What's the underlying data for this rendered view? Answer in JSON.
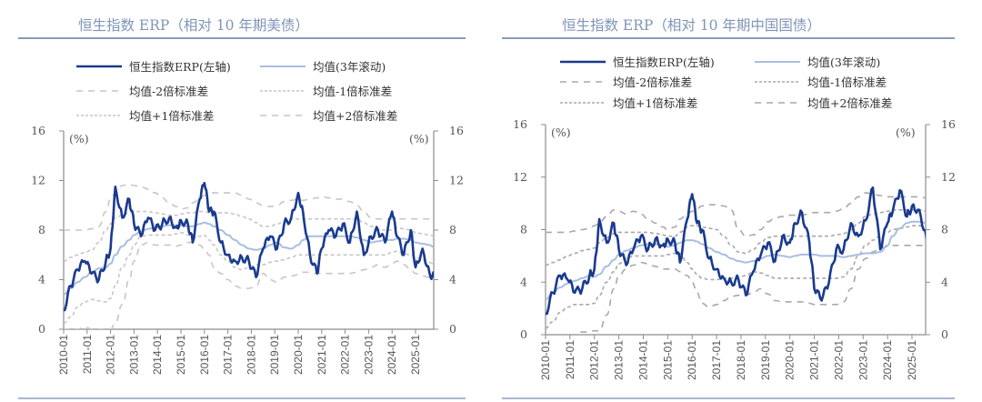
{
  "chart_data": [
    {
      "type": "line",
      "title": "恒生指数 ERP（相对 10 年期美债）",
      "unit_left": "(%)",
      "unit_right": "(%)",
      "ylim": [
        0,
        16
      ],
      "yticks": [
        "0",
        "4",
        "8",
        "12",
        "16"
      ],
      "xticks": [
        "2010-01",
        "2011-01",
        "2012-01",
        "2013-01",
        "2014-01",
        "2015-01",
        "2016-01",
        "2017-01",
        "2018-01",
        "2019-01",
        "2020-01",
        "2021-01",
        "2022-01",
        "2023-01",
        "2024-01",
        "2025-01"
      ],
      "legend": [
        "恒生指数ERP(左轴)",
        "均值(3年滚动)",
        "均值-2倍标准差",
        "均值-1倍标准差",
        "均值+1倍标准差",
        "均值+2倍标准差"
      ],
      "x": [
        2010.0,
        2010.3,
        2010.6,
        2010.9,
        2011.2,
        2011.5,
        2011.8,
        2012.0,
        2012.2,
        2012.5,
        2012.8,
        2013.0,
        2013.3,
        2013.6,
        2013.9,
        2014.2,
        2014.5,
        2014.8,
        2015.0,
        2015.3,
        2015.5,
        2015.8,
        2016.0,
        2016.2,
        2016.4,
        2016.7,
        2017.0,
        2017.3,
        2017.6,
        2017.9,
        2018.2,
        2018.5,
        2018.8,
        2019.1,
        2019.4,
        2019.7,
        2020.0,
        2020.2,
        2020.5,
        2020.8,
        2021.0,
        2021.3,
        2021.6,
        2021.9,
        2022.2,
        2022.5,
        2022.8,
        2023.1,
        2023.4,
        2023.7,
        2024.0,
        2024.2,
        2024.5,
        2024.8,
        2025.0,
        2025.3,
        2025.6,
        2025.8
      ],
      "series": [
        {
          "name": "恒生指数ERP(左轴)",
          "values": [
            1.5,
            3.5,
            4.8,
            5.5,
            4.5,
            4.0,
            5.5,
            6.5,
            11.5,
            9.0,
            10.5,
            8.5,
            7.5,
            9.0,
            8.0,
            8.5,
            9.0,
            8.2,
            8.8,
            8.5,
            7.0,
            10.5,
            11.8,
            9.5,
            9.5,
            7.0,
            6.0,
            5.5,
            5.8,
            5.5,
            4.2,
            6.5,
            7.5,
            6.5,
            8.5,
            9.0,
            11.0,
            9.5,
            6.0,
            4.5,
            6.5,
            8.0,
            7.5,
            8.5,
            7.0,
            9.5,
            6.0,
            7.5,
            8.0,
            7.0,
            9.5,
            7.5,
            6.0,
            8.0,
            5.0,
            6.5,
            4.5,
            4.2
          ]
        },
        {
          "name": "均值(3年滚动)",
          "values": [
            2.8,
            3.3,
            3.8,
            4.2,
            4.6,
            4.9,
            5.0,
            5.3,
            6.0,
            6.7,
            7.2,
            7.6,
            7.9,
            8.1,
            8.2,
            8.3,
            8.4,
            8.4,
            8.4,
            8.3,
            8.3,
            8.5,
            8.6,
            8.5,
            8.3,
            8.0,
            7.6,
            7.2,
            6.8,
            6.5,
            6.4,
            6.5,
            6.8,
            7.0,
            6.6,
            6.5,
            6.8,
            7.2,
            7.5,
            7.5,
            7.5,
            7.5,
            7.5,
            7.5,
            7.5,
            7.4,
            7.2,
            7.0,
            7.1,
            7.2,
            7.2,
            7.3,
            7.3,
            7.2,
            7.0,
            6.9,
            6.8,
            6.6
          ]
        },
        {
          "name": "均值-2倍标准差",
          "values": [
            0.0,
            0.0,
            0.0,
            0.2,
            0.0,
            0.0,
            0.0,
            0.0,
            0.5,
            2.0,
            4.0,
            5.5,
            6.8,
            7.0,
            6.8,
            6.8,
            6.8,
            6.7,
            6.8,
            7.0,
            7.0,
            6.8,
            6.5,
            6.0,
            5.0,
            4.5,
            4.0,
            3.5,
            3.3,
            3.3,
            3.5,
            4.5,
            4.0,
            3.8,
            4.2,
            4.3,
            4.4,
            4.6,
            4.6,
            4.5,
            4.5,
            4.5,
            4.5,
            4.5,
            4.5,
            4.6,
            4.8,
            5.0,
            5.2,
            5.0,
            5.3,
            5.5,
            5.2,
            4.8,
            4.5,
            4.3,
            4.2,
            4.0
          ]
        },
        {
          "name": "均值-1倍标准差",
          "values": [
            0.5,
            1.0,
            1.8,
            2.2,
            2.4,
            2.3,
            2.2,
            2.5,
            3.5,
            5.0,
            6.0,
            6.8,
            7.5,
            7.6,
            7.6,
            7.6,
            7.6,
            7.7,
            7.8,
            7.6,
            7.4,
            7.5,
            7.6,
            7.2,
            6.8,
            6.0,
            5.5,
            5.0,
            4.8,
            5.0,
            5.2,
            5.2,
            5.4,
            5.5,
            5.6,
            5.8,
            6.0,
            6.0,
            6.0,
            6.0,
            6.0,
            6.0,
            6.0,
            6.0,
            6.0,
            6.0,
            6.0,
            6.0,
            6.0,
            6.0,
            6.2,
            6.3,
            6.1,
            6.0,
            5.8,
            5.6,
            5.4,
            5.2
          ]
        },
        {
          "name": "均值+1倍标准差",
          "values": [
            5.5,
            5.8,
            6.0,
            6.2,
            6.4,
            7.0,
            8.0,
            8.5,
            9.0,
            9.2,
            9.4,
            9.5,
            9.5,
            9.5,
            9.4,
            9.3,
            9.2,
            9.2,
            9.3,
            9.4,
            9.4,
            9.5,
            9.5,
            9.4,
            9.4,
            9.4,
            9.4,
            9.3,
            9.1,
            8.9,
            8.6,
            8.3,
            8.3,
            8.5,
            8.7,
            8.9,
            8.9,
            8.9,
            8.9,
            8.9,
            8.9,
            8.9,
            8.9,
            8.9,
            8.9,
            8.9,
            8.6,
            8.3,
            8.1,
            8.0,
            8.0,
            8.2,
            8.1,
            8.0,
            7.8,
            7.7,
            7.6,
            7.5
          ]
        },
        {
          "name": "均值+2倍标准差",
          "values": [
            8.0,
            8.0,
            8.0,
            8.0,
            8.1,
            8.3,
            9.5,
            10.5,
            11.0,
            11.6,
            11.7,
            11.6,
            11.5,
            11.3,
            11.0,
            10.6,
            10.2,
            9.9,
            9.7,
            9.8,
            10.2,
            10.5,
            10.8,
            11.0,
            11.0,
            11.0,
            11.0,
            11.0,
            10.8,
            10.5,
            10.2,
            10.0,
            9.9,
            10.0,
            10.3,
            10.4,
            10.5,
            10.4,
            10.5,
            10.6,
            10.7,
            10.6,
            10.5,
            10.5,
            10.3,
            10.0,
            9.5,
            9.0,
            8.9,
            8.9,
            8.9,
            8.9,
            8.9,
            8.9,
            8.9,
            8.9,
            8.9,
            8.9
          ]
        }
      ]
    },
    {
      "type": "line",
      "title": "恒生指数 ERP（相对 10 年期中国国债）",
      "unit_left": "(%)",
      "unit_right": "(%)",
      "ylim": [
        0,
        16
      ],
      "yticks": [
        "0",
        "4",
        "8",
        "12",
        "16"
      ],
      "xticks": [
        "2010-01",
        "2011-01",
        "2012-01",
        "2013-01",
        "2014-01",
        "2015-01",
        "2016-01",
        "2017-01",
        "2018-01",
        "2019-01",
        "2020-01",
        "2021-01",
        "2022-01",
        "2023-01",
        "2024-01",
        "2025-01"
      ],
      "legend": [
        "恒生指数ERP(左轴)",
        "均值(3年滚动)",
        "均值-2倍标准差",
        "均值-1倍标准差",
        "均值+1倍标准差",
        "均值+2倍标准差"
      ],
      "x": [
        2010.0,
        2010.3,
        2010.6,
        2010.9,
        2011.2,
        2011.5,
        2011.8,
        2012.0,
        2012.2,
        2012.5,
        2012.8,
        2013.0,
        2013.3,
        2013.6,
        2013.9,
        2014.2,
        2014.5,
        2014.8,
        2015.0,
        2015.3,
        2015.5,
        2015.8,
        2016.0,
        2016.2,
        2016.4,
        2016.7,
        2017.0,
        2017.3,
        2017.6,
        2017.9,
        2018.2,
        2018.5,
        2018.8,
        2019.1,
        2019.4,
        2019.7,
        2020.0,
        2020.2,
        2020.5,
        2020.8,
        2021.0,
        2021.3,
        2021.6,
        2021.9,
        2022.2,
        2022.5,
        2022.8,
        2023.1,
        2023.4,
        2023.7,
        2024.0,
        2024.2,
        2024.5,
        2024.8,
        2025.0,
        2025.3,
        2025.6,
        2025.8
      ],
      "series": [
        {
          "name": "恒生指数ERP(左轴)",
          "values": [
            1.6,
            3.2,
            4.5,
            4.2,
            3.2,
            3.5,
            4.5,
            5.0,
            8.8,
            7.0,
            8.5,
            6.5,
            5.3,
            6.5,
            7.5,
            6.5,
            7.3,
            6.8,
            7.3,
            7.0,
            5.5,
            8.8,
            10.7,
            8.5,
            8.0,
            5.8,
            5.0,
            4.3,
            4.0,
            4.2,
            3.0,
            4.8,
            6.0,
            7.0,
            5.6,
            7.5,
            7.0,
            8.5,
            9.3,
            7.0,
            3.5,
            2.6,
            4.0,
            6.5,
            6.5,
            8.5,
            7.5,
            8.7,
            11.2,
            6.5,
            8.5,
            9.3,
            11.0,
            9.0,
            9.8,
            9.5,
            7.3,
            6.5
          ]
        },
        {
          "name": "均值(3年滚动)",
          "values": [
            2.7,
            3.2,
            3.6,
            3.9,
            4.1,
            4.3,
            4.5,
            4.4,
            4.6,
            5.2,
            5.7,
            6.1,
            6.4,
            6.6,
            6.8,
            6.9,
            6.9,
            6.8,
            6.7,
            6.8,
            7.0,
            7.2,
            7.2,
            7.1,
            6.9,
            6.6,
            6.3,
            6.1,
            5.8,
            5.6,
            5.5,
            5.6,
            5.8,
            6.0,
            6.1,
            6.0,
            5.9,
            6.0,
            6.1,
            6.1,
            6.1,
            6.0,
            6.0,
            6.0,
            5.9,
            6.0,
            6.1,
            6.2,
            6.2,
            6.3,
            6.8,
            7.5,
            8.1,
            8.5,
            8.6,
            8.6,
            8.5,
            8.3
          ]
        },
        {
          "name": "均值-2倍标准差",
          "values": [
            0.0,
            0.0,
            0.0,
            0.0,
            0.0,
            0.2,
            0.2,
            0.3,
            0.3,
            1.5,
            3.5,
            4.5,
            5.0,
            5.3,
            5.5,
            5.4,
            5.2,
            5.0,
            5.0,
            5.0,
            4.8,
            4.5,
            4.0,
            3.2,
            2.4,
            2.1,
            2.3,
            2.6,
            2.9,
            3.0,
            3.0,
            3.2,
            3.5,
            3.1,
            2.6,
            2.5,
            2.5,
            2.5,
            2.5,
            2.4,
            2.3,
            2.3,
            2.3,
            2.3,
            2.5,
            3.5,
            5.0,
            5.8,
            6.3,
            6.6,
            6.7,
            6.8,
            6.8,
            6.8,
            6.8,
            6.8,
            6.8,
            6.8
          ]
        },
        {
          "name": "均值-1倍标准差",
          "values": [
            0.5,
            1.0,
            1.7,
            2.1,
            2.3,
            2.3,
            2.3,
            2.4,
            3.0,
            4.0,
            4.8,
            5.4,
            5.8,
            6.0,
            6.0,
            6.0,
            6.0,
            6.0,
            6.1,
            6.2,
            6.2,
            5.5,
            5.0,
            4.6,
            4.3,
            4.2,
            4.2,
            4.3,
            4.3,
            4.4,
            4.5,
            4.8,
            4.7,
            4.5,
            4.3,
            4.3,
            4.3,
            4.3,
            4.3,
            4.3,
            4.3,
            4.3,
            4.3,
            4.3,
            4.4,
            5.0,
            6.0,
            6.8,
            7.2,
            7.5,
            7.8,
            8.0,
            8.1,
            8.2,
            8.3,
            8.3,
            8.3,
            8.3
          ]
        },
        {
          "name": "均值+1倍标准差",
          "values": [
            5.3,
            5.5,
            5.7,
            6.0,
            6.2,
            6.4,
            6.5,
            6.6,
            7.0,
            7.4,
            7.7,
            7.8,
            7.8,
            7.8,
            7.8,
            7.8,
            7.7,
            7.6,
            7.5,
            7.5,
            7.8,
            8.2,
            8.3,
            8.3,
            8.2,
            8.1,
            8.0,
            7.5,
            6.8,
            6.3,
            6.2,
            6.5,
            7.0,
            7.4,
            7.5,
            7.5,
            7.5,
            7.5,
            7.5,
            7.5,
            7.5,
            7.5,
            7.5,
            7.6,
            7.7,
            8.0,
            8.5,
            9.0,
            9.2,
            9.3,
            9.4,
            9.5,
            9.5,
            9.5,
            9.5,
            9.5,
            9.4,
            9.4
          ]
        },
        {
          "name": "均值+2倍标准差",
          "values": [
            7.8,
            7.8,
            7.8,
            7.8,
            7.9,
            8.0,
            8.1,
            8.3,
            8.5,
            9.0,
            9.5,
            9.4,
            9.2,
            9.4,
            9.2,
            8.8,
            8.5,
            8.2,
            8.0,
            8.2,
            8.8,
            9.2,
            9.4,
            9.6,
            9.8,
            9.9,
            9.9,
            9.8,
            9.5,
            8.0,
            7.5,
            7.6,
            8.0,
            8.6,
            8.9,
            9.0,
            9.1,
            9.1,
            9.1,
            9.2,
            9.3,
            9.3,
            9.3,
            9.4,
            9.6,
            10.0,
            10.5,
            10.8,
            10.7,
            10.6,
            10.5,
            10.5,
            10.5,
            10.5,
            10.5,
            10.5,
            10.4,
            10.4
          ]
        }
      ]
    }
  ],
  "colors": {
    "erp": "#1a3a8f",
    "mean": "#a9bde0",
    "band": "#a8a8a8",
    "band_light": "#c6c6c6",
    "title": "#7f95b8",
    "rule": "#8a9bb5",
    "axis": "#8c8c8c"
  }
}
